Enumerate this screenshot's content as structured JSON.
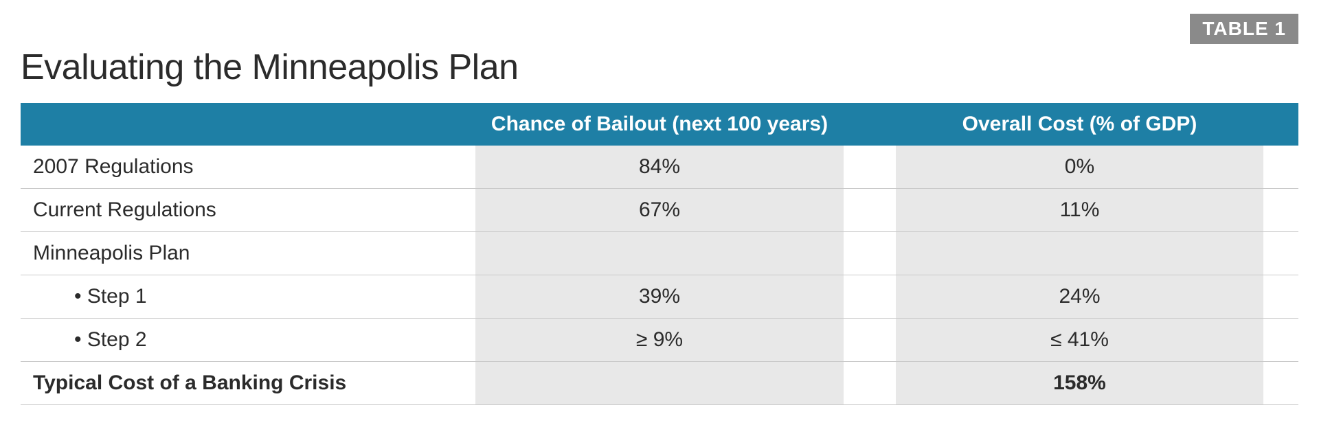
{
  "badge": "TABLE 1",
  "title": "Evaluating the Minneapolis Plan",
  "colors": {
    "header_bg": "#1e7fa5",
    "header_text": "#ffffff",
    "badge_bg": "#8a8a8a",
    "badge_text": "#ffffff",
    "shaded_bg": "#e8e8e8",
    "border": "#c9c9c9",
    "text": "#2b2b2b",
    "background": "#ffffff"
  },
  "typography": {
    "title_fontsize": 52,
    "title_weight": 300,
    "header_fontsize": 30,
    "header_weight": 700,
    "body_fontsize": 30,
    "badge_fontsize": 28,
    "badge_weight": 700
  },
  "table": {
    "type": "table",
    "columns": [
      {
        "label": "",
        "align": "left"
      },
      {
        "label": "Chance of Bailout (next 100 years)",
        "align": "center",
        "shaded": true
      },
      {
        "label": "Overall Cost (% of GDP)",
        "align": "center",
        "shaded": true
      }
    ],
    "rows": [
      {
        "label": "2007 Regulations",
        "bailout": "84%",
        "cost": "0%",
        "indent": false,
        "bold": false
      },
      {
        "label": "Current Regulations",
        "bailout": "67%",
        "cost": "11%",
        "indent": false,
        "bold": false
      },
      {
        "label": "Minneapolis Plan",
        "bailout": "",
        "cost": "",
        "indent": false,
        "bold": false
      },
      {
        "label": "• Step 1",
        "bailout": "39%",
        "cost": "24%",
        "indent": true,
        "bold": false
      },
      {
        "label": "• Step 2",
        "bailout": "≥ 9%",
        "cost": "≤ 41%",
        "indent": true,
        "bold": false
      },
      {
        "label": "Typical Cost of a Banking Crisis",
        "bailout": "",
        "cost": "158%",
        "indent": false,
        "bold": true
      }
    ]
  }
}
